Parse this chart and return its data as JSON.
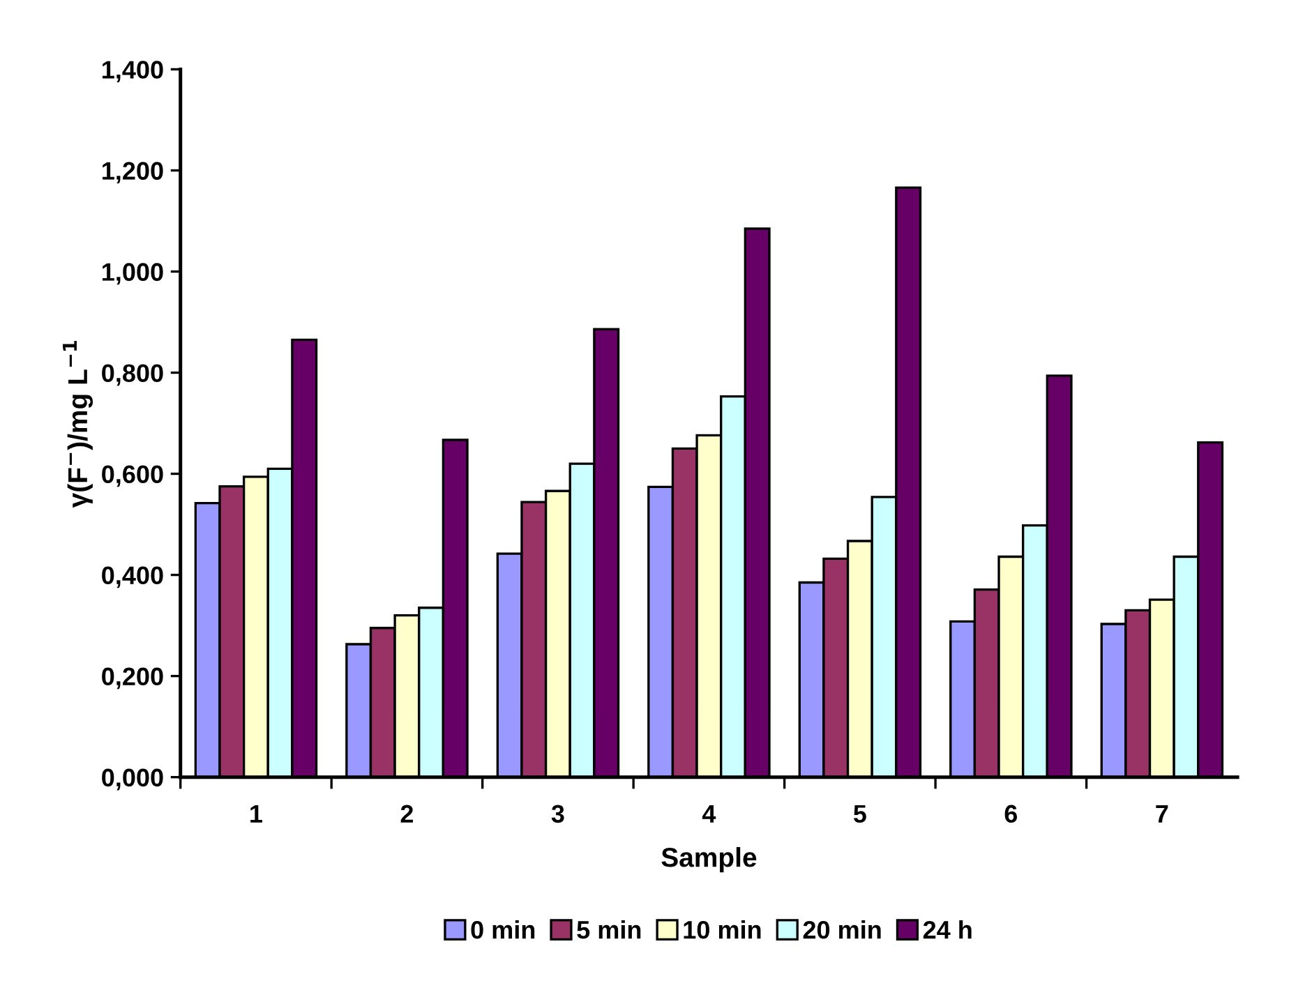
{
  "chart_data": {
    "type": "bar",
    "xlabel": "Sample",
    "ylabel": "γ(F$^{−}$)/mg L$^{−1}$",
    "categories": [
      "1",
      "2",
      "3",
      "4",
      "5",
      "6",
      "7"
    ],
    "series": [
      {
        "name": "0 min",
        "color": "#9999ff",
        "values": [
          0.542,
          0.263,
          0.442,
          0.574,
          0.385,
          0.308,
          0.303
        ]
      },
      {
        "name": "5 min",
        "color": "#993366",
        "values": [
          0.575,
          0.295,
          0.544,
          0.65,
          0.432,
          0.371,
          0.33
        ]
      },
      {
        "name": "10 min",
        "color": "#ffffcc",
        "values": [
          0.594,
          0.32,
          0.566,
          0.676,
          0.467,
          0.436,
          0.351
        ]
      },
      {
        "name": "20 min",
        "color": "#ccffff",
        "values": [
          0.61,
          0.335,
          0.62,
          0.753,
          0.554,
          0.498,
          0.436
        ]
      },
      {
        "name": "24 h",
        "color": "#660066",
        "values": [
          0.865,
          0.667,
          0.886,
          1.085,
          1.166,
          0.794,
          0.662
        ]
      }
    ],
    "ylim": [
      0,
      1.4
    ],
    "yticks": [
      {
        "value": 0,
        "label": "0,000"
      },
      {
        "value": 0.2,
        "label": "0,200"
      },
      {
        "value": 0.4,
        "label": "0,400"
      },
      {
        "value": 0.6,
        "label": "0,600"
      },
      {
        "value": 0.8,
        "label": "0,800"
      },
      {
        "value": 1.0,
        "label": "1,000"
      },
      {
        "value": 1.2,
        "label": "1,200"
      },
      {
        "value": 1.4,
        "label": "1,400"
      }
    ],
    "grid": false,
    "legend": "bottom"
  }
}
